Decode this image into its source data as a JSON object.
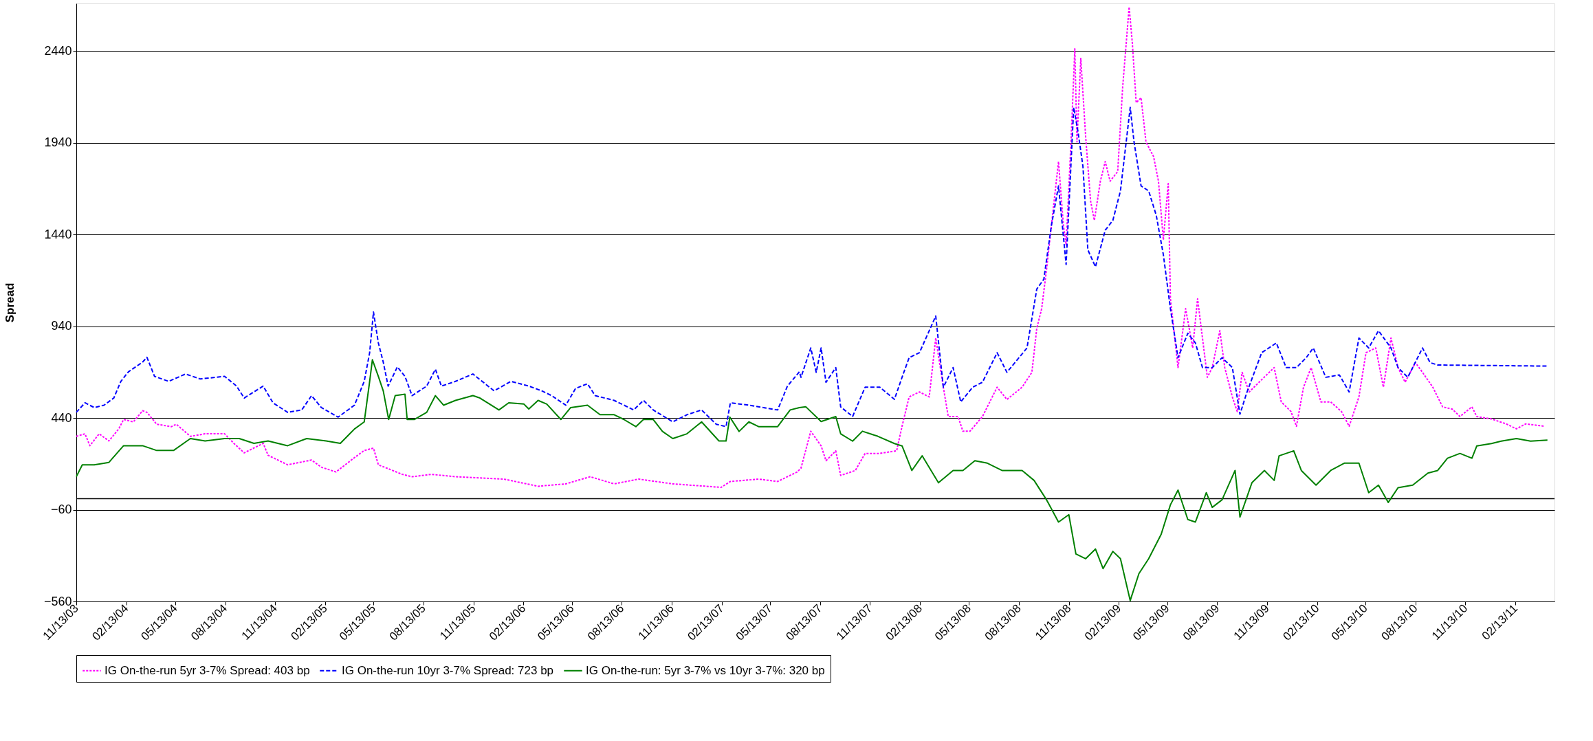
{
  "chart_data": {
    "type": "line",
    "ylabel": "Spread",
    "ylim": [
      -560,
      2700
    ],
    "yticks": [
      -560,
      -60,
      440,
      940,
      1440,
      1940,
      2440
    ],
    "xlim": [
      "2003-11-13",
      "2011-04-26"
    ],
    "xticks": [
      {
        "value": "2003-11-13",
        "label": "11/13/03"
      },
      {
        "value": "2004-02-13",
        "label": "02/13/04"
      },
      {
        "value": "2004-05-13",
        "label": "05/13/04"
      },
      {
        "value": "2004-08-13",
        "label": "08/13/04"
      },
      {
        "value": "2004-11-13",
        "label": "11/13/04"
      },
      {
        "value": "2005-02-13",
        "label": "02/13/05"
      },
      {
        "value": "2005-05-13",
        "label": "05/13/05"
      },
      {
        "value": "2005-08-13",
        "label": "08/13/05"
      },
      {
        "value": "2005-11-13",
        "label": "11/13/05"
      },
      {
        "value": "2006-02-13",
        "label": "02/13/06"
      },
      {
        "value": "2006-05-13",
        "label": "05/13/06"
      },
      {
        "value": "2006-08-13",
        "label": "08/13/06"
      },
      {
        "value": "2006-11-13",
        "label": "11/13/06"
      },
      {
        "value": "2007-02-13",
        "label": "02/13/07"
      },
      {
        "value": "2007-05-13",
        "label": "05/13/07"
      },
      {
        "value": "2007-08-13",
        "label": "08/13/07"
      },
      {
        "value": "2007-11-13",
        "label": "11/13/07"
      },
      {
        "value": "2008-02-13",
        "label": "02/13/08"
      },
      {
        "value": "2008-05-13",
        "label": "05/13/08"
      },
      {
        "value": "2008-08-13",
        "label": "08/13/08"
      },
      {
        "value": "2008-11-13",
        "label": "11/13/08"
      },
      {
        "value": "2009-02-13",
        "label": "02/13/09"
      },
      {
        "value": "2009-05-13",
        "label": "05/13/09"
      },
      {
        "value": "2009-08-13",
        "label": "08/13/09"
      },
      {
        "value": "2009-11-13",
        "label": "11/13/09"
      },
      {
        "value": "2010-02-13",
        "label": "02/13/10"
      },
      {
        "value": "2010-05-13",
        "label": "05/13/10"
      },
      {
        "value": "2010-08-13",
        "label": "08/13/10"
      },
      {
        "value": "2010-11-13",
        "label": "11/13/10"
      },
      {
        "value": "2011-02-13",
        "label": "02/13/11"
      }
    ],
    "grid": "y",
    "legend": "bottom",
    "marker": "none",
    "ref_lines": [
      {
        "axis": "y",
        "value": 0,
        "color": "#000000"
      }
    ],
    "series": [
      {
        "name": "IG On-the-run 5yr 3-7% Spread: 403 bp",
        "color": "#ff00ff",
        "line_style": "dotted",
        "x": [
          "2003-11-13",
          "2003-11-29",
          "2003-12-08",
          "2003-12-25",
          "2004-01-12",
          "2004-01-30",
          "2004-02-08",
          "2004-02-26",
          "2004-03-14",
          "2004-03-22",
          "2004-04-09",
          "2004-05-06",
          "2004-05-15",
          "2004-06-10",
          "2004-07-07",
          "2004-08-12",
          "2004-08-29",
          "2004-09-17",
          "2004-10-22",
          "2004-10-31",
          "2004-12-06",
          "2005-01-19",
          "2005-02-06",
          "2005-03-05",
          "2005-04-08",
          "2005-04-26",
          "2005-05-13",
          "2005-05-22",
          "2005-07-05",
          "2005-07-23",
          "2005-08-28",
          "2005-10-11",
          "2006-01-08",
          "2006-03-12",
          "2006-05-02",
          "2006-06-16",
          "2006-07-30",
          "2006-09-13",
          "2006-11-15",
          "2007-02-12",
          "2007-03-01",
          "2007-04-22",
          "2007-05-27",
          "2007-07-02",
          "2007-07-09",
          "2007-07-27",
          "2007-08-15",
          "2007-08-24",
          "2007-09-11",
          "2007-09-20",
          "2007-10-17",
          "2007-11-04",
          "2007-12-01",
          "2008-01-01",
          "2008-01-11",
          "2008-01-24",
          "2008-02-12",
          "2008-03-01",
          "2008-03-13",
          "2008-03-27",
          "2008-04-05",
          "2008-04-23",
          "2008-05-02",
          "2008-05-15",
          "2008-06-07",
          "2008-07-04",
          "2008-07-22",
          "2008-08-19",
          "2008-09-06",
          "2008-09-15",
          "2008-09-24",
          "2008-10-03",
          "2008-10-12",
          "2008-10-25",
          "2008-11-03",
          "2008-11-08",
          "2008-11-17",
          "2008-11-24",
          "2008-11-28",
          "2008-12-05",
          "2008-12-14",
          "2008-12-23",
          "2008-12-30",
          "2009-01-10",
          "2009-01-19",
          "2009-01-28",
          "2009-02-11",
          "2009-02-20",
          "2009-03-04",
          "2009-03-10",
          "2009-03-17",
          "2009-03-26",
          "2009-04-04",
          "2009-04-18",
          "2009-04-27",
          "2009-05-06",
          "2009-05-15",
          "2009-05-19",
          "2009-06-02",
          "2009-06-16",
          "2009-06-29",
          "2009-07-08",
          "2009-07-17",
          "2009-07-26",
          "2009-08-04",
          "2009-08-18",
          "2009-08-27",
          "2009-09-10",
          "2009-09-19",
          "2009-09-28",
          "2009-10-11",
          "2009-11-03",
          "2009-11-26",
          "2009-12-09",
          "2009-12-27",
          "2010-01-06",
          "2010-01-19",
          "2010-02-02",
          "2010-02-20",
          "2010-03-10",
          "2010-03-30",
          "2010-04-13",
          "2010-05-01",
          "2010-05-14",
          "2010-06-01",
          "2010-06-15",
          "2010-06-29",
          "2010-07-12",
          "2010-07-25",
          "2010-08-13",
          "2010-08-26",
          "2010-09-14",
          "2010-10-02",
          "2010-10-20",
          "2010-11-03",
          "2010-11-25",
          "2010-12-04",
          "2010-12-31",
          "2011-01-27",
          "2011-02-15",
          "2011-03-04",
          "2011-04-08"
        ],
        "values": [
          340,
          354,
          289,
          354,
          315,
          380,
          432,
          419,
          480,
          471,
          406,
          393,
          406,
          340,
          354,
          354,
          302,
          250,
          302,
          237,
          185,
          211,
          172,
          146,
          224,
          263,
          276,
          185,
          133,
          120,
          133,
          120,
          107,
          68,
          81,
          120,
          81,
          107,
          81,
          62,
          94,
          107,
          94,
          146,
          167,
          368,
          288,
          207,
          261,
          127,
          154,
          247,
          247,
          261,
          395,
          555,
          582,
          555,
          876,
          608,
          448,
          448,
          368,
          368,
          448,
          608,
          541,
          608,
          689,
          929,
          1036,
          1250,
          1491,
          1838,
          1491,
          1384,
          1945,
          2453,
          1945,
          2400,
          1972,
          1624,
          1517,
          1731,
          1838,
          1731,
          1784,
          2240,
          2681,
          2480,
          2159,
          2186,
          1945,
          1865,
          1731,
          1411,
          1718,
          1090,
          715,
          1036,
          822,
          1090,
          876,
          662,
          715,
          916,
          715,
          555,
          475,
          689,
          582,
          649,
          715,
          528,
          475,
          395,
          608,
          715,
          528,
          528,
          475,
          395,
          555,
          796,
          822,
          608,
          876,
          715,
          635,
          742,
          689,
          608,
          501,
          488,
          448,
          501,
          448,
          435,
          408,
          381,
          408,
          395
        ]
      },
      {
        "name": "IG On-the-run 10yr 3-7% Spread: 723 bp",
        "color": "#0000ff",
        "line_style": "dashed",
        "x": [
          "2003-11-13",
          "2003-11-29",
          "2003-12-16",
          "2004-01-03",
          "2004-01-21",
          "2004-02-03",
          "2004-02-17",
          "2004-03-14",
          "2004-03-22",
          "2004-04-05",
          "2004-05-01",
          "2004-06-01",
          "2004-06-28",
          "2004-08-12",
          "2004-09-03",
          "2004-09-17",
          "2004-10-22",
          "2004-11-09",
          "2004-12-06",
          "2005-01-01",
          "2005-01-19",
          "2005-02-06",
          "2005-03-09",
          "2005-04-08",
          "2005-04-26",
          "2005-05-06",
          "2005-05-13",
          "2005-05-22",
          "2005-05-31",
          "2005-06-09",
          "2005-06-26",
          "2005-07-10",
          "2005-07-23",
          "2005-08-19",
          "2005-09-04",
          "2005-09-15",
          "2005-10-11",
          "2005-11-12",
          "2005-12-21",
          "2006-01-21",
          "2006-02-23",
          "2006-03-19",
          "2006-04-06",
          "2006-05-02",
          "2006-05-20",
          "2006-06-11",
          "2006-06-25",
          "2006-07-30",
          "2006-09-04",
          "2006-09-22",
          "2006-10-10",
          "2006-11-15",
          "2006-12-11",
          "2007-01-07",
          "2007-02-03",
          "2007-02-21",
          "2007-03-01",
          "2007-04-04",
          "2007-05-01",
          "2007-05-27",
          "2007-06-14",
          "2007-07-06",
          "2007-07-09",
          "2007-07-27",
          "2007-08-06",
          "2007-08-15",
          "2007-08-24",
          "2007-09-11",
          "2007-09-20",
          "2007-10-12",
          "2007-11-04",
          "2007-12-01",
          "2007-12-28",
          "2008-01-11",
          "2008-01-24",
          "2008-02-12",
          "2008-03-13",
          "2008-03-27",
          "2008-04-14",
          "2008-04-28",
          "2008-05-20",
          "2008-06-07",
          "2008-07-04",
          "2008-07-22",
          "2008-08-28",
          "2008-09-15",
          "2008-09-28",
          "2008-10-12",
          "2008-10-25",
          "2008-11-08",
          "2008-11-22",
          "2008-11-30",
          "2008-12-09",
          "2008-12-18",
          "2009-01-01",
          "2009-01-19",
          "2009-02-02",
          "2009-02-16",
          "2009-03-06",
          "2009-03-13",
          "2009-03-26",
          "2009-04-09",
          "2009-04-23",
          "2009-05-06",
          "2009-05-19",
          "2009-06-02",
          "2009-06-20",
          "2009-07-04",
          "2009-07-17",
          "2009-08-04",
          "2009-08-22",
          "2009-09-10",
          "2009-09-24",
          "2009-10-07",
          "2009-11-03",
          "2009-11-30",
          "2009-12-18",
          "2010-01-06",
          "2010-01-24",
          "2010-02-06",
          "2010-03-01",
          "2010-03-26",
          "2010-04-13",
          "2010-05-01",
          "2010-05-19",
          "2010-06-06",
          "2010-06-29",
          "2010-07-12",
          "2010-07-30",
          "2010-08-26",
          "2010-09-09",
          "2010-09-23",
          "2011-04-13"
        ],
        "values": [
          471,
          523,
          497,
          510,
          549,
          640,
          692,
          745,
          771,
          667,
          640,
          680,
          653,
          667,
          614,
          549,
          614,
          523,
          471,
          484,
          562,
          497,
          445,
          510,
          640,
          797,
          1018,
          849,
          745,
          614,
          719,
          667,
          562,
          614,
          706,
          614,
          640,
          680,
          588,
          640,
          614,
          588,
          562,
          510,
          601,
          627,
          562,
          536,
          484,
          536,
          484,
          419,
          458,
          484,
          406,
          393,
          523,
          510,
          497,
          484,
          614,
          692,
          662,
          822,
          689,
          822,
          635,
          715,
          501,
          448,
          608,
          608,
          542,
          662,
          769,
          796,
          996,
          608,
          715,
          528,
          608,
          635,
          796,
          689,
          822,
          1143,
          1197,
          1491,
          1705,
          1277,
          2133,
          1999,
          1811,
          1357,
          1264,
          1464,
          1517,
          1678,
          2133,
          1945,
          1705,
          1678,
          1544,
          1330,
          1036,
          769,
          902,
          849,
          715,
          715,
          769,
          715,
          461,
          582,
          796,
          849,
          715,
          715,
          769,
          822,
          662,
          675,
          582,
          876,
          822,
          916,
          822,
          715,
          662,
          822,
          742,
          729,
          723
        ]
      },
      {
        "name": "IG On-the-run: 5yr 3-7% vs 10yr 3-7%: 320 bp",
        "color": "#008000",
        "line_style": "solid",
        "x": [
          "2003-11-13",
          "2003-11-24",
          "2003-12-16",
          "2004-01-12",
          "2004-02-08",
          "2004-03-14",
          "2004-04-09",
          "2004-05-10",
          "2004-06-10",
          "2004-07-07",
          "2004-08-12",
          "2004-09-08",
          "2004-10-05",
          "2004-10-31",
          "2004-12-06",
          "2005-01-10",
          "2005-02-15",
          "2005-03-13",
          "2005-04-08",
          "2005-04-26",
          "2005-05-06",
          "2005-05-11",
          "2005-05-22",
          "2005-05-31",
          "2005-06-10",
          "2005-06-22",
          "2005-07-10",
          "2005-07-14",
          "2005-07-27",
          "2005-08-19",
          "2005-09-04",
          "2005-09-19",
          "2005-10-11",
          "2005-11-12",
          "2005-11-25",
          "2005-12-30",
          "2006-01-17",
          "2006-02-14",
          "2006-02-23",
          "2006-03-12",
          "2006-03-28",
          "2006-04-23",
          "2006-05-11",
          "2006-06-11",
          "2006-07-04",
          "2006-07-30",
          "2006-08-17",
          "2006-09-08",
          "2006-09-22",
          "2006-10-10",
          "2006-10-27",
          "2006-11-15",
          "2006-12-11",
          "2007-01-07",
          "2007-02-08",
          "2007-02-21",
          "2007-02-28",
          "2007-03-17",
          "2007-04-04",
          "2007-04-22",
          "2007-05-27",
          "2007-06-19",
          "2007-07-06",
          "2007-07-18",
          "2007-08-15",
          "2007-09-11",
          "2007-09-20",
          "2007-10-12",
          "2007-10-30",
          "2007-11-27",
          "2007-12-28",
          "2008-01-11",
          "2008-01-29",
          "2008-02-17",
          "2008-03-18",
          "2008-04-14",
          "2008-05-02",
          "2008-05-24",
          "2008-06-16",
          "2008-07-13",
          "2008-08-19",
          "2008-09-10",
          "2008-10-03",
          "2008-10-25",
          "2008-11-13",
          "2008-11-26",
          "2008-12-14",
          "2009-01-01",
          "2009-01-15",
          "2009-02-02",
          "2009-02-16",
          "2009-03-06",
          "2009-03-22",
          "2009-04-09",
          "2009-05-02",
          "2009-05-19",
          "2009-06-02",
          "2009-06-20",
          "2009-07-04",
          "2009-07-24",
          "2009-08-04",
          "2009-08-22",
          "2009-09-15",
          "2009-09-24",
          "2009-10-16",
          "2009-11-08",
          "2009-11-26",
          "2009-12-05",
          "2010-01-01",
          "2010-01-15",
          "2010-02-11",
          "2010-03-10",
          "2010-04-04",
          "2010-05-01",
          "2010-05-19",
          "2010-06-06",
          "2010-06-24",
          "2010-07-12",
          "2010-08-08",
          "2010-09-05",
          "2010-09-23",
          "2010-10-11",
          "2010-11-03",
          "2010-11-25",
          "2010-12-04",
          "2010-12-31",
          "2011-01-18",
          "2011-02-15",
          "2011-03-13",
          "2011-04-13"
        ],
        "values": [
          120,
          185,
          185,
          198,
          289,
          289,
          263,
          263,
          328,
          315,
          328,
          328,
          302,
          315,
          289,
          328,
          315,
          302,
          380,
          419,
          640,
          758,
          667,
          588,
          432,
          562,
          570,
          432,
          432,
          471,
          562,
          510,
          536,
          562,
          549,
          484,
          523,
          516,
          489,
          536,
          516,
          432,
          497,
          510,
          458,
          458,
          432,
          393,
          432,
          432,
          367,
          328,
          354,
          419,
          315,
          315,
          445,
          367,
          419,
          393,
          393,
          484,
          497,
          501,
          421,
          448,
          354,
          314,
          368,
          341,
          301,
          288,
          154,
          234,
          87,
          154,
          154,
          207,
          194,
          154,
          154,
          100,
          -6,
          -127,
          -87,
          -301,
          -327,
          -274,
          -381,
          -287,
          -327,
          -555,
          -408,
          -327,
          -194,
          -33,
          47,
          -113,
          -127,
          33,
          -47,
          -6,
          154,
          -100,
          87,
          154,
          100,
          234,
          261,
          154,
          74,
          154,
          194,
          194,
          33,
          74,
          -20,
          60,
          74,
          140,
          154,
          221,
          247,
          221,
          288,
          301,
          314,
          328,
          314,
          320
        ]
      }
    ]
  }
}
